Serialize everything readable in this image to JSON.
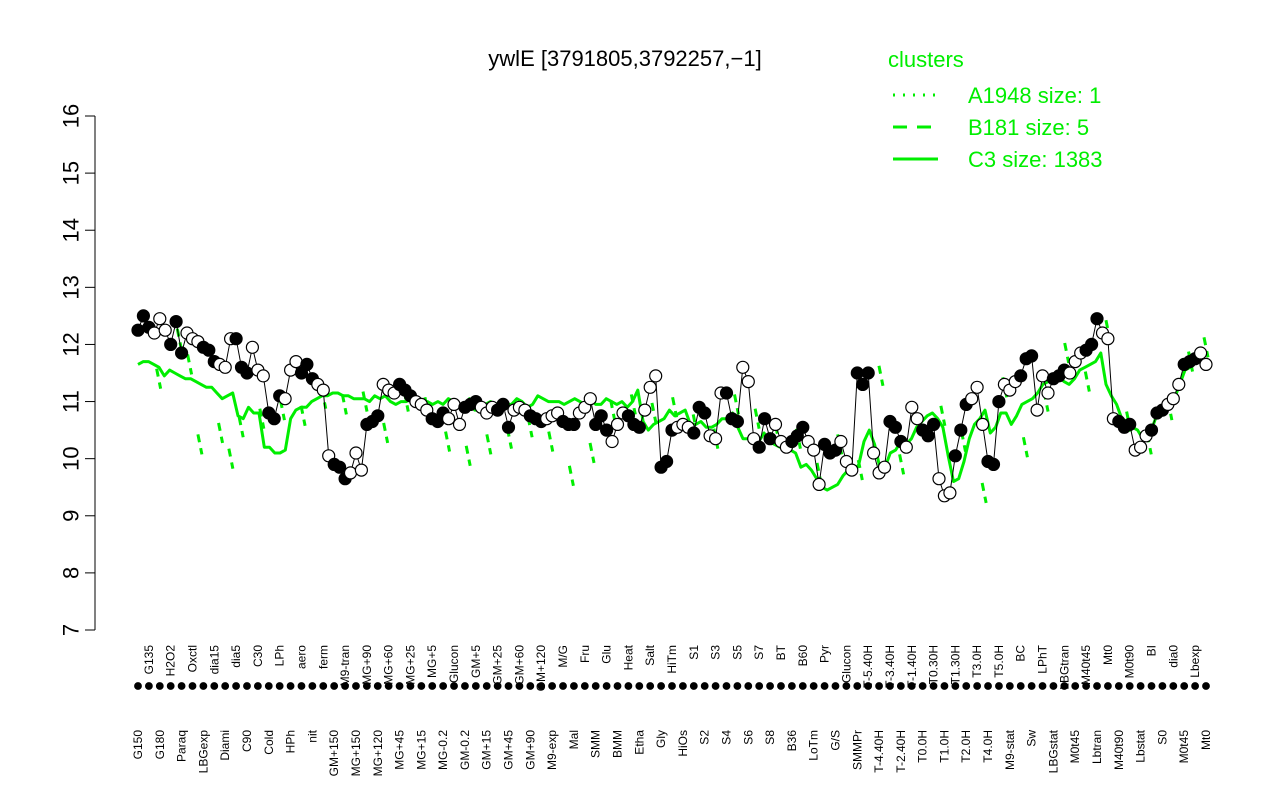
{
  "chart_data": {
    "type": "line",
    "title": "ywlE [3791805,3792257,−1]",
    "xlabel": "",
    "ylabel": "",
    "ylim": [
      7,
      16
    ],
    "yticks": [
      7,
      8,
      9,
      10,
      11,
      12,
      13,
      14,
      15,
      16
    ],
    "grid": false,
    "legend": {
      "title": "clusters",
      "placement": "top-right",
      "color": "#00ee00",
      "entries": [
        {
          "label": "A1948 size: 1",
          "style": "dotted"
        },
        {
          "label": "B181 size: 5",
          "style": "dashed"
        },
        {
          "label": "C3 size: 1383",
          "style": "solid"
        }
      ]
    },
    "tick_labels": [
      "G150",
      "G135",
      "G180",
      "H2O2",
      "Paraq",
      "Oxctl",
      "LBGexp",
      "dia15",
      "Diami",
      "dia5",
      "C90",
      "C30",
      "Cold",
      "LPh",
      "HPh",
      "aero",
      "nit",
      "ferm",
      "GM+150",
      "M9-tran",
      "MG+150",
      "MG+90",
      "MG+120",
      "MG+60",
      "MG+45",
      "MG+25",
      "MG+15",
      "MG+5",
      "MG-0.2",
      "Glucon",
      "GM-0.2",
      "GM+5",
      "GM+15",
      "GM+25",
      "GM+45",
      "GM+60",
      "GM+90",
      "GM+120",
      "M9-exp",
      "M/G",
      "Mal",
      "Fru",
      "SMM",
      "Glu",
      "BMM",
      "Heat",
      "Etha",
      "Salt",
      "Gly",
      "HiTm",
      "HiOs",
      "S1",
      "S2",
      "S3",
      "S4",
      "S5",
      "S6",
      "S7",
      "S8",
      "BT",
      "B36",
      "B60",
      "LoTm",
      "Pyr",
      "G/S",
      "Glucon",
      "SMMPr",
      "T-5.40H",
      "T-4.40H",
      "T-3.40H",
      "T-2.40H",
      "T-1.40H",
      "T0.0H",
      "T0.30H",
      "T1.0H",
      "T1.30H",
      "T2.0H",
      "T3.0H",
      "T4.0H",
      "T5.0H",
      "M9-stat",
      "BC",
      "Sw",
      "LPhT",
      "LBGstat",
      "LBGtran",
      "M0t45",
      "M40t45",
      "Lbtran",
      "Mt0",
      "M40t90",
      "M0t90",
      "Lbstat",
      "BI",
      "S0",
      "dia0",
      "M0t45",
      "Lbexp",
      "Mt0"
    ],
    "series": [
      {
        "style": "points",
        "values": [
          12.25,
          12.5,
          12.3,
          12.2,
          12.45,
          12.25,
          12.0,
          12.4,
          11.85,
          12.2,
          12.1,
          12.05,
          11.95,
          11.9,
          11.7,
          11.65,
          11.6,
          12.1,
          12.1,
          11.6,
          11.5,
          11.95,
          11.55,
          11.45,
          10.8,
          10.7,
          11.1,
          11.05,
          11.55,
          11.7,
          11.5,
          11.65,
          11.4,
          11.3,
          11.2,
          10.05,
          9.9,
          9.85,
          9.65,
          9.75,
          10.1,
          9.8,
          10.6,
          10.65,
          10.75,
          11.3,
          11.2,
          11.15,
          11.3,
          11.2,
          11.1,
          11.0,
          10.95,
          10.85,
          10.7,
          10.65,
          10.8,
          10.7,
          10.95,
          10.6,
          10.9,
          10.95,
          11.0,
          10.9,
          10.8,
          10.9,
          10.85,
          10.95,
          10.55,
          10.85,
          10.9,
          10.85,
          10.75,
          10.7,
          10.65,
          10.7,
          10.75,
          10.8,
          10.65,
          10.6,
          10.6,
          10.8,
          10.9,
          11.05,
          10.6,
          10.75,
          10.5,
          10.3,
          10.6,
          10.8,
          10.75,
          10.6,
          10.55,
          10.85,
          11.25,
          11.45,
          9.85,
          9.95,
          10.5,
          10.55,
          10.6,
          10.55,
          10.45,
          10.9,
          10.8,
          10.4,
          10.35,
          11.15,
          11.15,
          10.7,
          10.65,
          11.6,
          11.35,
          10.35,
          10.2,
          10.7,
          10.35,
          10.6,
          10.3,
          10.2,
          10.3,
          10.4,
          10.55,
          10.3,
          10.15,
          9.55,
          10.25,
          10.1,
          10.15,
          10.3,
          9.95,
          9.8,
          11.5,
          11.3,
          11.5,
          10.1,
          9.75,
          9.85,
          10.65,
          10.55,
          10.3,
          10.2,
          10.9,
          10.7,
          10.5,
          10.4,
          10.6,
          9.65,
          9.35,
          9.4,
          10.05,
          10.5,
          10.95,
          11.05,
          11.25,
          10.6,
          9.95,
          9.9,
          11.0,
          11.3,
          11.2,
          11.35,
          11.45,
          11.75,
          11.8,
          10.85,
          11.45,
          11.15,
          11.4,
          11.45,
          11.55,
          11.5,
          11.7,
          11.85,
          11.9,
          12.0,
          12.45,
          12.2,
          12.1,
          10.7,
          10.65,
          10.55,
          10.6,
          10.15,
          10.2,
          10.4,
          10.5,
          10.8,
          10.85,
          10.95,
          11.05,
          11.3,
          11.65,
          11.7,
          11.75,
          11.85,
          11.65
        ]
      },
      {
        "name": "C3 size: 1383",
        "style": "solid",
        "values": [
          11.65,
          11.7,
          11.7,
          11.65,
          11.6,
          11.45,
          11.55,
          11.5,
          11.45,
          11.4,
          11.4,
          11.35,
          11.3,
          11.25,
          11.25,
          11.15,
          11.05,
          11.1,
          11.15,
          10.75,
          10.7,
          10.9,
          10.8,
          10.8,
          10.2,
          10.2,
          10.1,
          10.1,
          10.15,
          10.7,
          10.85,
          10.9,
          10.9,
          11.0,
          11.05,
          11.1,
          11.1,
          11.15,
          11.15,
          11.1,
          11.1,
          11.05,
          11.05,
          11.05,
          11.0,
          11.1,
          11.05,
          11.1,
          11.0,
          10.95,
          11.0,
          11.0,
          11.05,
          11.0,
          10.95,
          11.0,
          10.95,
          11.0,
          10.95,
          11.05,
          11.0,
          10.95,
          10.95,
          11.05,
          10.85,
          10.85,
          10.95,
          11.0,
          10.95,
          11.0,
          10.95,
          10.95,
          11.05,
          11.0,
          10.9,
          10.95,
          11.1,
          11.05,
          11.0,
          11.0,
          11.0,
          10.95,
          11.0,
          11.05,
          11.0,
          10.95,
          11.05,
          10.95,
          10.95,
          11.05,
          11.0,
          10.95,
          11.0,
          10.9,
          11.0,
          11.2,
          10.65,
          10.5,
          10.6,
          10.65,
          10.7,
          10.85,
          10.75,
          10.8,
          10.85,
          10.6,
          10.6,
          10.65,
          10.55,
          10.55,
          10.6,
          10.7,
          10.7,
          10.8,
          10.55,
          10.35,
          10.35,
          10.4,
          10.3,
          10.45,
          10.3,
          10.25,
          10.2,
          10.25,
          10.15,
          10.1,
          9.85,
          9.9,
          9.8,
          9.65,
          9.5,
          9.45,
          9.5,
          9.55,
          9.7,
          9.8,
          9.75,
          9.9,
          10.3,
          10.5,
          10.25,
          9.85,
          9.85,
          10.1,
          10.15,
          10.3,
          10.25,
          10.35,
          10.55,
          10.65,
          10.75,
          10.8,
          10.7,
          10.55,
          10.05,
          9.6,
          9.65,
          9.95,
          10.35,
          10.6,
          10.7,
          10.85,
          10.45,
          10.55,
          10.8,
          10.8,
          10.6,
          10.75,
          10.95,
          11.0,
          11.05,
          11.15,
          11.3,
          11.35,
          11.4,
          11.45,
          11.35,
          11.3,
          11.4,
          11.55,
          11.6,
          11.65,
          11.7,
          11.85,
          11.3,
          11.1,
          10.95,
          10.7,
          10.65,
          10.55,
          10.5,
          10.35,
          10.45,
          10.6,
          10.85,
          10.9,
          11.0,
          11.05,
          11.3,
          11.55,
          11.6,
          11.7,
          11.8,
          11.6
        ]
      },
      {
        "name": "B181 size: 5",
        "style": "dashed",
        "values": [
          null,
          null,
          null,
          null,
          11.4,
          null,
          null,
          null,
          12.1,
          null,
          11.65,
          null,
          10.25,
          null,
          null,
          null,
          10.45,
          null,
          10.0,
          null,
          10.55,
          null,
          null,
          null,
          10.7,
          null,
          null,
          null,
          10.85,
          null,
          null,
          null,
          10.75,
          null,
          null,
          null,
          11.05,
          null,
          null,
          null,
          10.95,
          null,
          null,
          null,
          11.0,
          null,
          null,
          null,
          10.45,
          null,
          null,
          null,
          11.0,
          null,
          null,
          null,
          10.9,
          null,
          null,
          null,
          10.3,
          null,
          null,
          null,
          10.05,
          null,
          null,
          null,
          10.25,
          null,
          null,
          null,
          10.35,
          null,
          null,
          null,
          10.55,
          null,
          null,
          null,
          10.3,
          null,
          null,
          null,
          9.7,
          null,
          null,
          null,
          10.1,
          null,
          null,
          null,
          10.85,
          null,
          null,
          null,
          10.95,
          null,
          null,
          null,
          10.8,
          null,
          null,
          null,
          10.9,
          null,
          null,
          null,
          10.6,
          null,
          null,
          null,
          10.35,
          null,
          null,
          null,
          10.95,
          null,
          null,
          null,
          10.7,
          null,
          null,
          null,
          10.4,
          null,
          null,
          null,
          10.35,
          null,
          null,
          null,
          9.75,
          null,
          null,
          null,
          10.25,
          null,
          null,
          null,
          9.8,
          null,
          null,
          null,
          11.45,
          null,
          null,
          null,
          9.9,
          null,
          null,
          null,
          10.6,
          null,
          null,
          null,
          10.75,
          null,
          null,
          null,
          10.3,
          null,
          null,
          null,
          9.4,
          null,
          null,
          null,
          11.25,
          null,
          null,
          null,
          10.2,
          null,
          null,
          null,
          11.0,
          null,
          null,
          null,
          11.85,
          null,
          null,
          null,
          11.35,
          null,
          null,
          null,
          12.25,
          null,
          null,
          null,
          10.65,
          null,
          null,
          null,
          10.25,
          null,
          null,
          null,
          10.85,
          null,
          null,
          null,
          11.7,
          null,
          null,
          11.95
        ]
      }
    ]
  }
}
